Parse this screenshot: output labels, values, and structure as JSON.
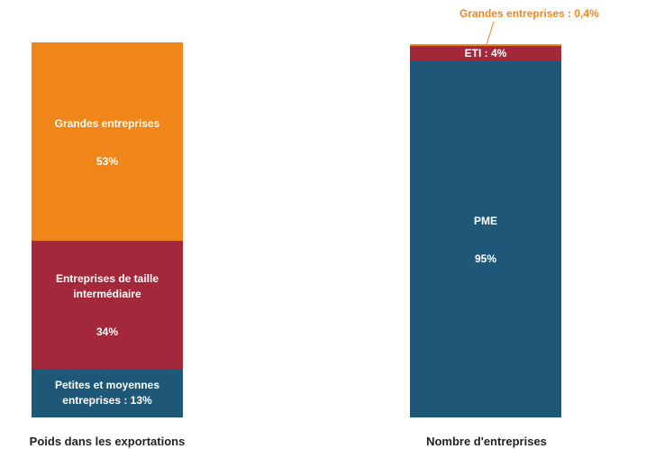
{
  "chart_data": {
    "type": "stacked_bar",
    "ylim": [
      0,
      100
    ],
    "bars": [
      {
        "name": "Poids dans les exportations",
        "segments": [
          {
            "label": "Petites et moyennes entreprises : 13%",
            "value": 13,
            "color": "#1f5779"
          },
          {
            "label": "Entreprises de taille intermédiaire",
            "value_label": "34%",
            "value": 34,
            "color": "#a3283c"
          },
          {
            "label": "Grandes entreprises",
            "value_label": "53%",
            "value": 53,
            "color": "#f0861a"
          }
        ]
      },
      {
        "name": "Nombre d'entreprises",
        "segments": [
          {
            "label": "PME",
            "value_label": "95%",
            "value": 95,
            "color": "#1f5779"
          },
          {
            "label": "ETI : 4%",
            "value": 4,
            "color": "#a3283c"
          },
          {
            "label": "Grandes entreprises : 0,4%",
            "value": 0.4,
            "color": "#f0861a"
          }
        ]
      }
    ]
  }
}
